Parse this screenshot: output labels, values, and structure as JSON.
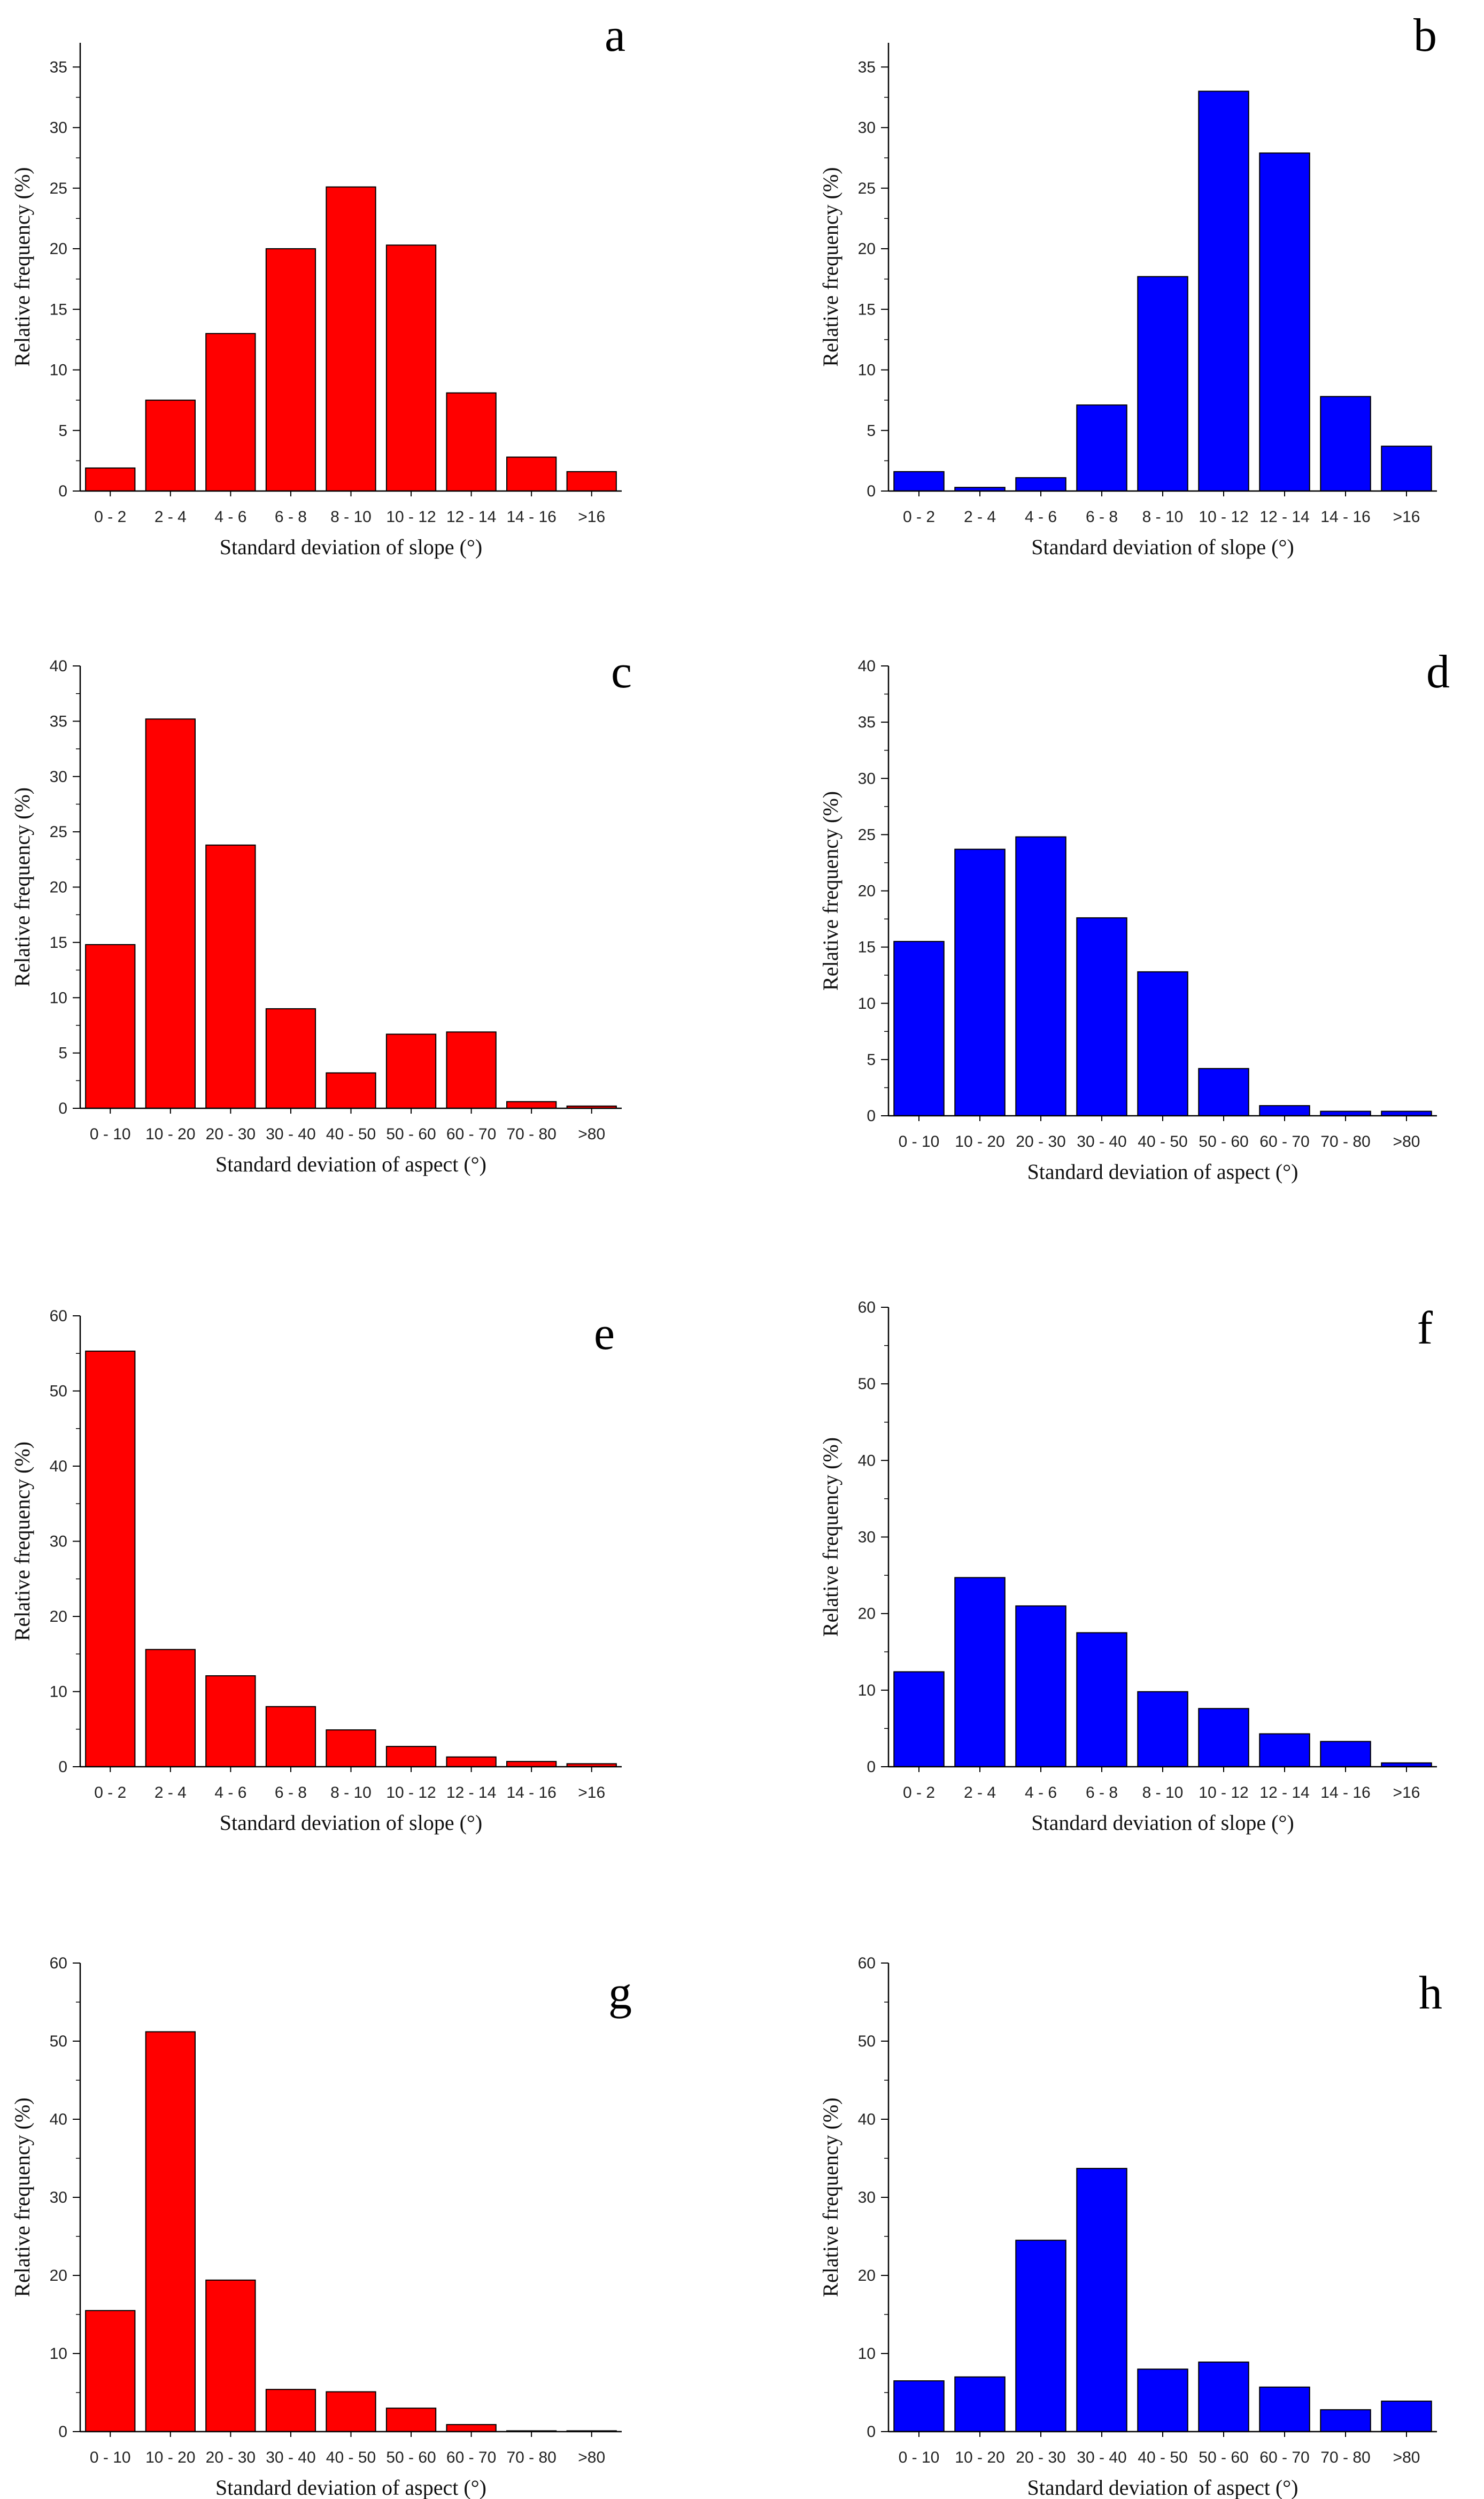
{
  "colors": {
    "red": "#ff0000",
    "blue": "#0000ff",
    "outline": "#000000"
  },
  "chart_data": [
    {
      "panel": "a",
      "type": "bar",
      "color": "red",
      "categories": [
        "0 - 2",
        "2 - 4",
        "4 - 6",
        "6 - 8",
        "8 - 10",
        "10 - 12",
        "12 - 14",
        "14 - 16",
        ">16"
      ],
      "values": [
        1.9,
        7.5,
        13.0,
        20.0,
        25.1,
        20.3,
        8.1,
        2.8,
        1.6
      ],
      "ylim": [
        0,
        37
      ],
      "yticks": [
        0,
        5,
        10,
        15,
        20,
        25,
        30,
        35
      ],
      "xlabel": "Standard deviation of slope (°)",
      "ylabel": "Relative frequency (%)"
    },
    {
      "panel": "b",
      "type": "bar",
      "color": "blue",
      "categories": [
        "0 - 2",
        "2 - 4",
        "4 - 6",
        "6 - 8",
        "8 - 10",
        "10 - 12",
        "12 - 14",
        "14 - 16",
        ">16"
      ],
      "values": [
        1.6,
        0.3,
        1.1,
        7.1,
        17.7,
        33.0,
        27.9,
        7.8,
        3.7
      ],
      "ylim": [
        0,
        37
      ],
      "yticks": [
        0,
        5,
        10,
        15,
        20,
        25,
        30,
        35
      ],
      "xlabel": "Standard deviation of slope (°)",
      "ylabel": "Relative frequency (%)"
    },
    {
      "panel": "c",
      "type": "bar",
      "color": "red",
      "categories": [
        "0 - 10",
        "10 - 20",
        "20 - 30",
        "30 - 40",
        "40 - 50",
        "50 - 60",
        "60 - 70",
        "70 - 80",
        ">80"
      ],
      "values": [
        14.8,
        35.2,
        23.8,
        9.0,
        3.2,
        6.7,
        6.9,
        0.6,
        0.2
      ],
      "ylim": [
        0,
        40
      ],
      "yticks": [
        0,
        5,
        10,
        15,
        20,
        25,
        30,
        35,
        40
      ],
      "xlabel": "Standard deviation of aspect (°)",
      "ylabel": "Relative frequency (%)"
    },
    {
      "panel": "d",
      "type": "bar",
      "color": "blue",
      "categories": [
        "0 - 10",
        "10 - 20",
        "20 - 30",
        "30 - 40",
        "40 - 50",
        "50 - 60",
        "60 - 70",
        "70 - 80",
        ">80"
      ],
      "values": [
        15.5,
        23.7,
        24.8,
        17.6,
        12.8,
        4.2,
        0.9,
        0.4,
        0.4
      ],
      "ylim": [
        0,
        40
      ],
      "yticks": [
        0,
        5,
        10,
        15,
        20,
        25,
        30,
        35,
        40
      ],
      "xlabel": "Standard deviation of aspect (°)",
      "ylabel": "Relative frequency (%)"
    },
    {
      "panel": "e",
      "type": "bar",
      "color": "red",
      "categories": [
        "0 - 2",
        "2 - 4",
        "4 - 6",
        "6 - 8",
        "8 - 10",
        "10 - 12",
        "12 - 14",
        "14 - 16",
        ">16"
      ],
      "values": [
        55.3,
        15.6,
        12.1,
        8.0,
        4.9,
        2.7,
        1.3,
        0.7,
        0.4
      ],
      "ylim": [
        0,
        60
      ],
      "yticks": [
        0,
        10,
        20,
        30,
        40,
        50,
        60
      ],
      "xlabel": "Standard deviation of slope (°)",
      "ylabel": "Relative frequency (%)"
    },
    {
      "panel": "f",
      "type": "bar",
      "color": "blue",
      "categories": [
        "0 - 2",
        "2 - 4",
        "4 - 6",
        "6 - 8",
        "8 - 10",
        "10 - 12",
        "12 - 14",
        "14 - 16",
        ">16"
      ],
      "values": [
        12.4,
        24.7,
        21.0,
        17.5,
        9.8,
        7.6,
        4.3,
        3.3,
        0.5
      ],
      "ylim": [
        0,
        60
      ],
      "yticks": [
        0,
        10,
        20,
        30,
        40,
        50,
        60
      ],
      "xlabel": "Standard deviation of slope (°)",
      "ylabel": "Relative frequency (%)"
    },
    {
      "panel": "g",
      "type": "bar",
      "color": "red",
      "categories": [
        "0 - 10",
        "10 - 20",
        "20 - 30",
        "30 - 40",
        "40 - 50",
        "50 - 60",
        "60 - 70",
        "70 - 80",
        ">80"
      ],
      "values": [
        15.5,
        51.2,
        19.4,
        5.4,
        5.1,
        3.0,
        0.9,
        0.1,
        0.1
      ],
      "ylim": [
        0,
        60
      ],
      "yticks": [
        0,
        10,
        20,
        30,
        40,
        50,
        60
      ],
      "xlabel": "Standard deviation of aspect (°)",
      "ylabel": "Relative frequency (%)"
    },
    {
      "panel": "h",
      "type": "bar",
      "color": "blue",
      "categories": [
        "0 - 10",
        "10 - 20",
        "20 - 30",
        "30 - 40",
        "40 - 50",
        "50 - 60",
        "60 - 70",
        "70 - 80",
        ">80"
      ],
      "values": [
        6.5,
        7.0,
        24.5,
        33.7,
        8.0,
        8.9,
        5.7,
        2.8,
        3.9
      ],
      "ylim": [
        0,
        60
      ],
      "yticks": [
        0,
        10,
        20,
        30,
        40,
        50,
        60
      ],
      "xlabel": "Standard deviation of aspect (°)",
      "ylabel": "Relative frequency (%)"
    }
  ]
}
